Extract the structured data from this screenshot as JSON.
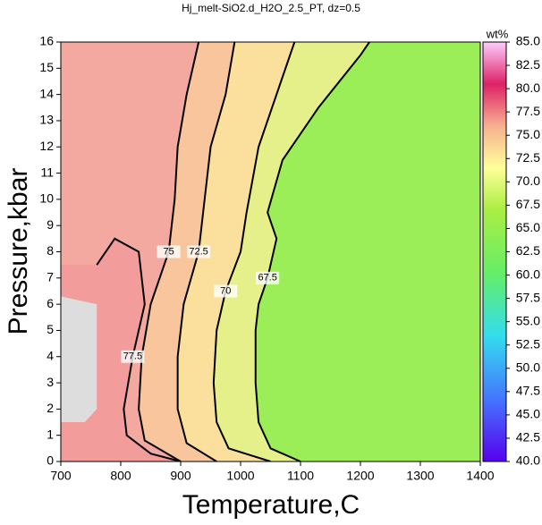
{
  "chart_data": {
    "type": "contour",
    "title": "Hj_melt-SiO2.d_H2O_2.5_PT, dz=0.5",
    "x_label": "Temperature,C",
    "y_label": "Pressure,kbar",
    "xlim": [
      700,
      1400
    ],
    "xticks": [
      700,
      800,
      900,
      1000,
      1100,
      1200,
      1300,
      1400
    ],
    "ylim": [
      0,
      16
    ],
    "yticks": [
      0,
      1,
      2,
      3,
      4,
      5,
      6,
      7,
      8,
      9,
      10,
      11,
      12,
      13,
      14,
      15,
      16
    ],
    "background_color": "#9cee58",
    "contours": [
      {
        "level": 67.5,
        "fill": "#e6f08a",
        "x": [
          1100,
          1050,
          1030,
          1025,
          1025,
          1030,
          1045,
          1060,
          1045,
          1070,
          1130,
          1200,
          1215
        ],
        "y": [
          0,
          0.5,
          1.5,
          3,
          5,
          6,
          7,
          8.5,
          9.5,
          11.5,
          13.5,
          15.5,
          16
        ]
      },
      {
        "level": 70,
        "fill": "#fbdf9c",
        "x": [
          1050,
          980,
          960,
          955,
          960,
          975,
          1000,
          1010,
          1030,
          1060,
          1090
        ],
        "y": [
          0,
          0.5,
          1.5,
          3,
          5,
          6.5,
          8,
          9.5,
          12,
          14,
          16
        ]
      },
      {
        "level": 72.5,
        "fill": "#f8c59c",
        "x": [
          960,
          910,
          895,
          895,
          905,
          930,
          940,
          950,
          975,
          990
        ],
        "y": [
          0,
          0.7,
          2,
          4,
          6,
          8,
          10,
          12,
          14,
          16
        ]
      },
      {
        "level": 75,
        "fill": "#f4a9a0",
        "x": [
          900,
          840,
          830,
          835,
          850,
          880,
          890,
          895,
          910,
          930
        ],
        "y": [
          0,
          0.8,
          2,
          4,
          6,
          8,
          10,
          12,
          14,
          16
        ]
      },
      {
        "level": 77.5,
        "fill": "#f39c9c",
        "x": [
          900,
          850,
          810,
          805,
          820,
          840,
          830,
          790,
          760
        ],
        "y": [
          0,
          0.3,
          1,
          2,
          4,
          6,
          8,
          8.5,
          7.5
        ]
      }
    ],
    "colorbar": {
      "label": "wt%",
      "lim": [
        40,
        85
      ],
      "ticks": [
        {
          "value": 40,
          "label": "40.0"
        },
        42.5,
        {
          "value": 45,
          "label": "45.0"
        },
        47.5,
        {
          "value": 50,
          "label": "50.0"
        },
        52.5,
        {
          "value": 55,
          "label": "55.0"
        },
        57.5,
        {
          "value": 60,
          "label": "60.0"
        },
        62.5,
        {
          "value": 65,
          "label": "65.0"
        },
        67.5,
        {
          "value": 70,
          "label": "70.0"
        },
        72.5,
        {
          "value": 75,
          "label": "75.0"
        },
        77.5,
        {
          "value": 80,
          "label": "80.0"
        },
        82.5,
        {
          "value": 85,
          "label": "85.0"
        }
      ]
    }
  }
}
